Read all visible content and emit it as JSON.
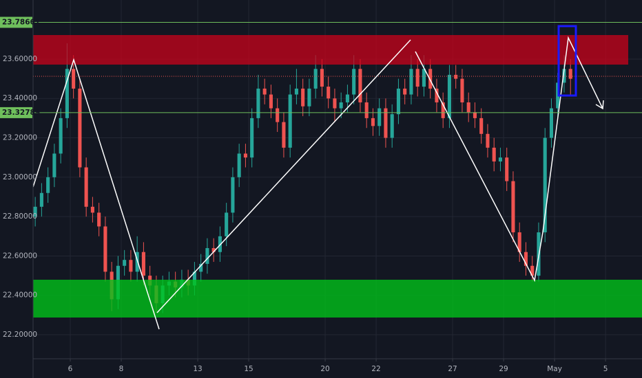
{
  "chart_data": {
    "type": "candlestick",
    "up_color": "#26a69a",
    "down_color": "#ef5350",
    "level_color": "#6fbf5c",
    "grid": true,
    "xlim": [
      -1.46,
      22.43
    ],
    "ylim": [
      22.078,
      23.9
    ],
    "xticks": [
      {
        "value": 0,
        "label": "6"
      },
      {
        "value": 2,
        "label": "8"
      },
      {
        "value": 5,
        "label": "13"
      },
      {
        "value": 7,
        "label": "15"
      },
      {
        "value": 10,
        "label": "20"
      },
      {
        "value": 12,
        "label": "22"
      },
      {
        "value": 15,
        "label": "27"
      },
      {
        "value": 17,
        "label": "29"
      },
      {
        "value": 19,
        "label": "May"
      },
      {
        "value": 21,
        "label": "5"
      }
    ],
    "yticks": [
      {
        "value": 22.2,
        "label": "22.20000"
      },
      {
        "value": 22.4,
        "label": "22.40000"
      },
      {
        "value": 22.6,
        "label": "22.60000"
      },
      {
        "value": 22.8,
        "label": "22.80000"
      },
      {
        "value": 23,
        "label": "23.00000"
      },
      {
        "value": 23.2,
        "label": "23.20000"
      },
      {
        "value": 23.4,
        "label": "23.40000"
      },
      {
        "value": 23.6,
        "label": "23.60000"
      }
    ],
    "levels": [
      23.78661,
      23.32789
    ],
    "x": [
      -1.375,
      -1.125,
      -0.875,
      -0.625,
      -0.375,
      -0.125,
      0.125,
      0.375,
      0.625,
      0.875,
      1.125,
      1.375,
      1.625,
      1.875,
      2.125,
      2.375,
      2.625,
      2.875,
      3.125,
      3.375,
      3.625,
      3.875,
      4.125,
      4.375,
      4.625,
      4.875,
      5.125,
      5.375,
      5.625,
      5.875,
      6.125,
      6.375,
      6.625,
      6.875,
      7.125,
      7.375,
      7.625,
      7.875,
      8.125,
      8.375,
      8.625,
      8.875,
      9.125,
      9.375,
      9.625,
      9.875,
      10.125,
      10.375,
      10.625,
      10.875,
      11.125,
      11.375,
      11.625,
      11.875,
      12.125,
      12.375,
      12.625,
      12.875,
      13.125,
      13.375,
      13.625,
      13.875,
      14.125,
      14.375,
      14.625,
      14.875,
      15.125,
      15.375,
      15.625,
      15.875,
      16.125,
      16.375,
      16.625,
      16.875,
      17.125,
      17.375,
      17.625,
      17.875,
      18.125,
      18.375,
      18.625,
      18.875,
      19.125,
      19.375,
      19.625
    ],
    "open": [
      22.8,
      22.85,
      22.92,
      23.0,
      23.12,
      23.3,
      23.55,
      23.45,
      23.05,
      22.85,
      22.82,
      22.75,
      22.52,
      22.38,
      22.55,
      22.58,
      22.52,
      22.62,
      22.5,
      22.45,
      22.36,
      22.45,
      22.47,
      22.44,
      22.48,
      22.45,
      22.52,
      22.56,
      22.64,
      22.62,
      22.7,
      22.82,
      23.0,
      23.12,
      23.1,
      23.3,
      23.45,
      23.42,
      23.35,
      23.28,
      23.15,
      23.42,
      23.45,
      23.36,
      23.45,
      23.55,
      23.46,
      23.4,
      23.35,
      23.38,
      23.42,
      23.55,
      23.38,
      23.3,
      23.26,
      23.35,
      23.2,
      23.32,
      23.45,
      23.42,
      23.55,
      23.46,
      23.55,
      23.45,
      23.38,
      23.3,
      23.52,
      23.5,
      23.38,
      23.33,
      23.3,
      23.22,
      23.15,
      23.08,
      23.1,
      22.98,
      22.72,
      22.62,
      22.55,
      22.5,
      22.72,
      23.2,
      23.35,
      23.48,
      23.55
    ],
    "high": [
      22.9,
      22.97,
      23.05,
      23.17,
      23.35,
      23.68,
      23.62,
      23.5,
      23.1,
      22.9,
      22.87,
      22.8,
      22.57,
      22.6,
      22.63,
      22.63,
      22.7,
      22.67,
      22.55,
      22.5,
      22.5,
      22.52,
      22.52,
      22.53,
      22.53,
      22.57,
      22.61,
      22.69,
      22.69,
      22.75,
      22.87,
      23.05,
      23.17,
      23.17,
      23.35,
      23.52,
      23.5,
      23.47,
      23.4,
      23.33,
      23.47,
      23.55,
      23.5,
      23.5,
      23.62,
      23.6,
      23.51,
      23.45,
      23.43,
      23.47,
      23.62,
      23.6,
      23.43,
      23.35,
      23.4,
      23.4,
      23.37,
      23.5,
      23.5,
      23.62,
      23.6,
      23.62,
      23.6,
      23.5,
      23.43,
      23.57,
      23.57,
      23.55,
      23.43,
      23.38,
      23.35,
      23.27,
      23.2,
      23.15,
      23.15,
      23.03,
      22.77,
      22.67,
      22.6,
      22.77,
      23.25,
      23.4,
      23.53,
      23.62,
      23.6
    ],
    "low": [
      22.75,
      22.8,
      22.87,
      22.95,
      23.07,
      23.25,
      23.4,
      23.0,
      22.8,
      22.77,
      22.7,
      22.47,
      22.32,
      22.33,
      22.5,
      22.47,
      22.47,
      22.45,
      22.4,
      22.31,
      22.31,
      22.4,
      22.39,
      22.39,
      22.4,
      22.4,
      22.47,
      22.51,
      22.57,
      22.57,
      22.65,
      22.77,
      22.95,
      23.05,
      23.05,
      23.25,
      23.37,
      23.3,
      23.23,
      23.1,
      23.1,
      23.37,
      23.31,
      23.31,
      23.4,
      23.41,
      23.35,
      23.28,
      23.3,
      23.33,
      23.37,
      23.33,
      23.25,
      23.21,
      23.21,
      23.15,
      23.15,
      23.27,
      23.37,
      23.37,
      23.41,
      23.41,
      23.4,
      23.33,
      23.25,
      23.25,
      23.45,
      23.33,
      23.28,
      23.25,
      23.17,
      23.1,
      23.03,
      23.03,
      22.93,
      22.67,
      22.57,
      22.5,
      22.47,
      22.47,
      22.67,
      23.15,
      23.3,
      23.43,
      23.42
    ],
    "close": [
      22.85,
      22.92,
      23.0,
      23.12,
      23.3,
      23.55,
      23.45,
      23.05,
      22.85,
      22.82,
      22.75,
      22.52,
      22.38,
      22.55,
      22.58,
      22.52,
      22.62,
      22.5,
      22.45,
      22.36,
      22.45,
      22.47,
      22.44,
      22.48,
      22.45,
      22.52,
      22.56,
      22.64,
      22.62,
      22.7,
      22.82,
      23.0,
      23.12,
      23.1,
      23.3,
      23.45,
      23.42,
      23.35,
      23.28,
      23.15,
      23.42,
      23.45,
      23.36,
      23.45,
      23.55,
      23.46,
      23.4,
      23.35,
      23.38,
      23.42,
      23.55,
      23.38,
      23.3,
      23.26,
      23.35,
      23.2,
      23.32,
      23.45,
      23.42,
      23.55,
      23.46,
      23.55,
      23.45,
      23.38,
      23.3,
      23.52,
      23.5,
      23.38,
      23.33,
      23.3,
      23.22,
      23.15,
      23.08,
      23.1,
      22.98,
      22.72,
      22.62,
      22.55,
      22.5,
      22.72,
      23.2,
      23.35,
      23.48,
      23.55,
      23.5
    ]
  }
}
